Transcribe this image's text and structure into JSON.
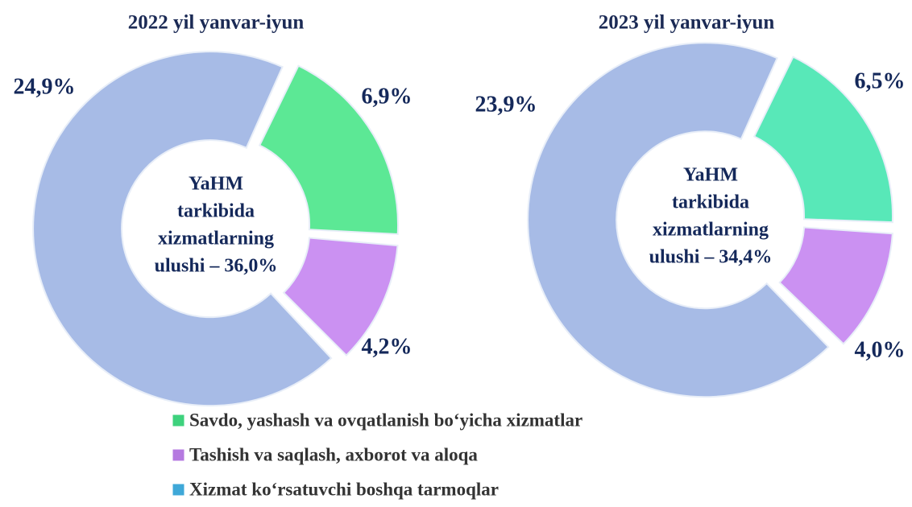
{
  "chart_data": [
    {
      "type": "pie",
      "title": "2022 yil yanvar-iyun",
      "center_text": [
        "YaHM",
        "tarkibida",
        "xizmatlarning",
        "ulushi – 36,0%"
      ],
      "values": [
        6.9,
        4.2,
        24.9
      ],
      "value_labels": [
        "6,9%",
        "4,2%",
        "24,9%"
      ],
      "colors": [
        "#5ce895",
        "#cb91f2",
        "#a7bbe6"
      ],
      "donut": true
    },
    {
      "type": "pie",
      "title": "2023 yil yanvar-iyun",
      "center_text": [
        "YaHM",
        "tarkibida",
        "xizmatlarning",
        "ulushi – 34,4%"
      ],
      "values": [
        6.5,
        4.0,
        23.9
      ],
      "value_labels": [
        "6,5%",
        "4,0%",
        "23,9%"
      ],
      "colors": [
        "#58e8b8",
        "#cb91f2",
        "#a7bbe6"
      ],
      "donut": true
    }
  ],
  "legend": {
    "names": [
      "Savdo, yashash va ovqatlanish bo‘yicha xizmatlar",
      "Tashish va saqlash, axborot va aloqa",
      "Xizmat ko‘rsatuvchi boshqa tarmoqlar"
    ],
    "colors": [
      "#3ed27d",
      "#b57ae0",
      "#3fa8d8"
    ]
  }
}
